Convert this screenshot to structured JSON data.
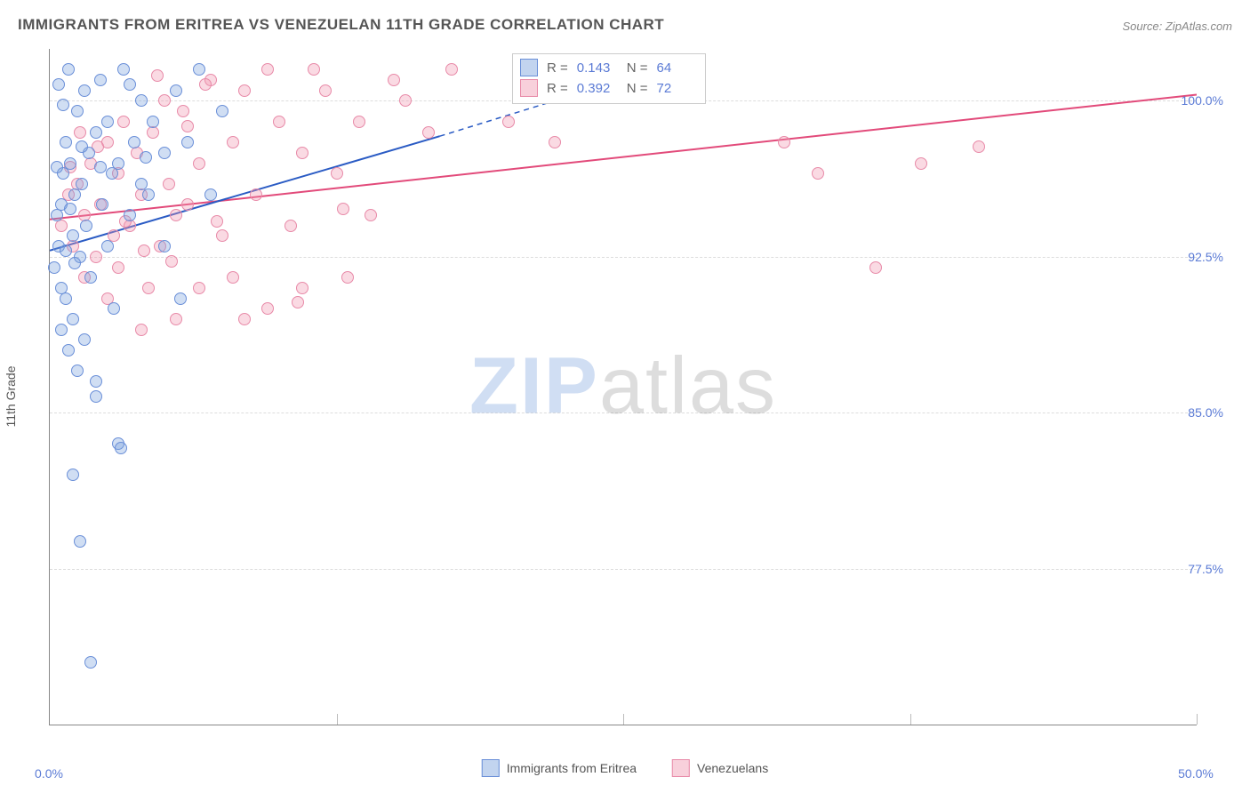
{
  "title": "IMMIGRANTS FROM ERITREA VS VENEZUELAN 11TH GRADE CORRELATION CHART",
  "source": "Source: ZipAtlas.com",
  "ylabel": "11th Grade",
  "watermark": {
    "zip": "ZIP",
    "atlas": "atlas"
  },
  "chart": {
    "type": "scatter",
    "background_color": "#ffffff",
    "grid_color": "#dddddd",
    "axis_color": "#888888",
    "label_color": "#5b7bd5",
    "title_fontsize": 17,
    "label_fontsize": 14,
    "marker_size": 14,
    "xlim": [
      0,
      50
    ],
    "ylim": [
      70,
      102.5
    ],
    "ytick_values": [
      77.5,
      85.0,
      92.5,
      100.0
    ],
    "ytick_labels": [
      "77.5%",
      "85.0%",
      "92.5%",
      "100.0%"
    ],
    "xtick_values": [
      0,
      50
    ],
    "xtick_labels": [
      "0.0%",
      "50.0%"
    ],
    "xgrid_values": [
      12.5,
      25,
      37.5,
      50
    ],
    "series": [
      {
        "name": "Immigrants from Eritrea",
        "color_fill": "rgba(120,160,220,0.35)",
        "color_stroke": "#6a8fd8",
        "line_color": "#2a5bc4",
        "line_width": 2,
        "R": "0.143",
        "N": "64",
        "trend": {
          "x1": 0,
          "y1": 92.8,
          "x2": 17,
          "y2": 98.3,
          "dash_x2": 22,
          "dash_y2": 100.0
        },
        "points": [
          [
            0.2,
            92.0
          ],
          [
            0.3,
            94.5
          ],
          [
            0.4,
            93.0
          ],
          [
            0.5,
            95.0
          ],
          [
            0.5,
            91.0
          ],
          [
            0.6,
            96.5
          ],
          [
            0.7,
            98.0
          ],
          [
            0.7,
            90.5
          ],
          [
            0.8,
            101.5
          ],
          [
            0.9,
            97.0
          ],
          [
            1.0,
            93.5
          ],
          [
            1.0,
            89.5
          ],
          [
            1.1,
            95.5
          ],
          [
            1.2,
            99.5
          ],
          [
            1.3,
            92.5
          ],
          [
            1.4,
            96.0
          ],
          [
            1.5,
            100.5
          ],
          [
            1.5,
            88.5
          ],
          [
            1.6,
            94.0
          ],
          [
            1.7,
            97.5
          ],
          [
            1.8,
            91.5
          ],
          [
            2.0,
            98.5
          ],
          [
            2.0,
            86.5
          ],
          [
            2.2,
            101.0
          ],
          [
            2.3,
            95.0
          ],
          [
            2.5,
            93.0
          ],
          [
            2.5,
            99.0
          ],
          [
            2.7,
            96.5
          ],
          [
            2.8,
            90.0
          ],
          [
            3.0,
            97.0
          ],
          [
            3.0,
            83.5
          ],
          [
            3.1,
            83.3
          ],
          [
            3.2,
            101.5
          ],
          [
            3.5,
            94.5
          ],
          [
            3.7,
            98.0
          ],
          [
            4.0,
            96.0
          ],
          [
            4.0,
            100.0
          ],
          [
            4.3,
            95.5
          ],
          [
            4.5,
            99.0
          ],
          [
            5.0,
            97.5
          ],
          [
            5.0,
            93.0
          ],
          [
            5.5,
            100.5
          ],
          [
            5.7,
            90.5
          ],
          [
            6.0,
            98.0
          ],
          [
            6.5,
            101.5
          ],
          [
            7.0,
            95.5
          ],
          [
            7.5,
            99.5
          ],
          [
            1.0,
            82.0
          ],
          [
            1.3,
            78.8
          ],
          [
            1.8,
            73.0
          ],
          [
            2.0,
            85.8
          ],
          [
            0.5,
            89.0
          ],
          [
            0.8,
            88.0
          ],
          [
            1.2,
            87.0
          ],
          [
            0.3,
            96.8
          ],
          [
            0.6,
            99.8
          ],
          [
            3.5,
            100.8
          ],
          [
            4.2,
            97.3
          ],
          [
            0.9,
            94.8
          ],
          [
            1.1,
            92.2
          ],
          [
            1.4,
            97.8
          ],
          [
            2.2,
            96.8
          ],
          [
            0.4,
            100.8
          ],
          [
            0.7,
            92.8
          ]
        ]
      },
      {
        "name": "Venezuelans",
        "color_fill": "rgba(240,150,175,0.35)",
        "color_stroke": "#e88aa8",
        "line_color": "#e24a7a",
        "line_width": 2,
        "R": "0.392",
        "N": "72",
        "trend": {
          "x1": 0,
          "y1": 94.3,
          "x2": 50,
          "y2": 100.3
        },
        "points": [
          [
            0.5,
            94.0
          ],
          [
            0.8,
            95.5
          ],
          [
            1.0,
            93.0
          ],
          [
            1.2,
            96.0
          ],
          [
            1.5,
            94.5
          ],
          [
            1.8,
            97.0
          ],
          [
            2.0,
            92.5
          ],
          [
            2.2,
            95.0
          ],
          [
            2.5,
            98.0
          ],
          [
            2.8,
            93.5
          ],
          [
            3.0,
            96.5
          ],
          [
            3.2,
            99.0
          ],
          [
            3.5,
            94.0
          ],
          [
            3.8,
            97.5
          ],
          [
            4.0,
            95.5
          ],
          [
            4.3,
            91.0
          ],
          [
            4.5,
            98.5
          ],
          [
            4.8,
            93.0
          ],
          [
            5.0,
            100.0
          ],
          [
            5.2,
            96.0
          ],
          [
            5.5,
            94.5
          ],
          [
            5.8,
            99.5
          ],
          [
            6.0,
            95.0
          ],
          [
            6.5,
            97.0
          ],
          [
            7.0,
            101.0
          ],
          [
            7.5,
            93.5
          ],
          [
            8.0,
            98.0
          ],
          [
            8.5,
            100.5
          ],
          [
            9.0,
            95.5
          ],
          [
            9.5,
            90.0
          ],
          [
            10.0,
            99.0
          ],
          [
            10.5,
            94.0
          ],
          [
            11.0,
            97.5
          ],
          [
            11.5,
            101.5
          ],
          [
            12.0,
            100.5
          ],
          [
            12.5,
            96.5
          ],
          [
            13.0,
            91.5
          ],
          [
            13.5,
            99.0
          ],
          [
            14.0,
            94.5
          ],
          [
            15.0,
            101.0
          ],
          [
            15.5,
            100.0
          ],
          [
            16.5,
            98.5
          ],
          [
            17.5,
            101.5
          ],
          [
            20.0,
            99.0
          ],
          [
            22.0,
            98.0
          ],
          [
            4.0,
            89.0
          ],
          [
            6.5,
            91.0
          ],
          [
            8.5,
            89.5
          ],
          [
            11.0,
            91.0
          ],
          [
            8.0,
            91.5
          ],
          [
            2.5,
            90.5
          ],
          [
            1.5,
            91.5
          ],
          [
            3.0,
            92.0
          ],
          [
            5.5,
            89.5
          ],
          [
            32.0,
            98.0
          ],
          [
            33.5,
            96.5
          ],
          [
            36.0,
            92.0
          ],
          [
            38.0,
            97.0
          ],
          [
            40.5,
            97.8
          ],
          [
            9.5,
            101.5
          ],
          [
            6.8,
            100.8
          ],
          [
            4.7,
            101.2
          ],
          [
            3.3,
            94.2
          ],
          [
            4.1,
            92.8
          ],
          [
            2.1,
            97.8
          ],
          [
            1.3,
            98.5
          ],
          [
            0.9,
            96.8
          ],
          [
            7.3,
            94.2
          ],
          [
            6.0,
            98.8
          ],
          [
            5.3,
            92.3
          ],
          [
            12.8,
            94.8
          ],
          [
            10.8,
            90.3
          ]
        ]
      }
    ]
  },
  "legend": {
    "series1_label": "Immigrants from Eritrea",
    "series2_label": "Venezuelans"
  },
  "statbox": {
    "r_label": "R =",
    "n_label": "N ="
  }
}
